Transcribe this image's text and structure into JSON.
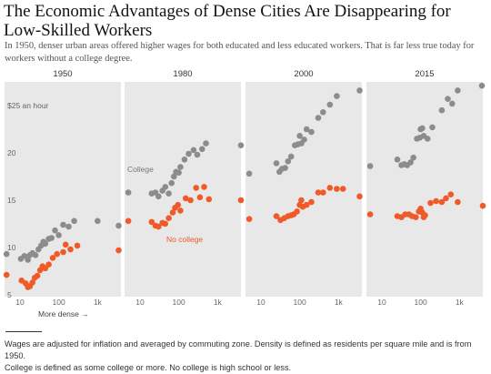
{
  "title": "The Economic Advantages of Dense Cities Are Disappearing for Low-Skilled Workers",
  "subtitle": "In 1950, denser urban areas offered higher wages for both educated and less educated workers. That is far less true today for workers without a college degree.",
  "notes": [
    "Wages are adjusted for inflation and averaged by commuting zone. Density is defined as residents per square mile and is from 1950.",
    "College is defined as some college or more. No college is high school or less."
  ],
  "colors": {
    "college": "#8c8c8c",
    "no_college": "#f05a28",
    "panel_bg": "#e8e8e8"
  },
  "chart_data": {
    "type": "scatter",
    "x_scale": "log",
    "xlim": [
      4,
      4000
    ],
    "ylim": [
      4.8,
      27.5
    ],
    "x_ticks": [
      {
        "v": 10,
        "label": "10"
      },
      {
        "v": 100,
        "label": "100"
      },
      {
        "v": 1000,
        "label": "1k"
      }
    ],
    "y_ticks": [
      {
        "v": 25,
        "label": "$25 an hour"
      },
      {
        "v": 20,
        "label": "20"
      },
      {
        "v": 15,
        "label": "15"
      },
      {
        "v": 10,
        "label": "10"
      },
      {
        "v": 5,
        "label": "5"
      }
    ],
    "x_note": "More dense →",
    "series_labels": {
      "college": "College",
      "no_college": "No college"
    },
    "panels": [
      {
        "year": "1950",
        "college": [
          [
            4.5,
            9.3
          ],
          [
            10.5,
            8.8
          ],
          [
            13,
            9.1
          ],
          [
            16,
            8.7
          ],
          [
            18,
            9.2
          ],
          [
            21,
            9.4
          ],
          [
            25,
            9.2
          ],
          [
            30,
            9.8
          ],
          [
            35,
            10.2
          ],
          [
            40,
            10.6
          ],
          [
            45,
            10.4
          ],
          [
            55,
            10.9
          ],
          [
            65,
            11
          ],
          [
            80,
            11.8
          ],
          [
            100,
            11.3
          ],
          [
            130,
            12.4
          ],
          [
            180,
            12.2
          ],
          [
            250,
            12.8
          ],
          [
            1000,
            12.8
          ],
          [
            3500,
            12.3
          ]
        ],
        "no_college": [
          [
            4.5,
            7.1
          ],
          [
            11,
            6.5
          ],
          [
            14,
            6.2
          ],
          [
            16,
            5.8
          ],
          [
            18,
            5.9
          ],
          [
            21,
            6.3
          ],
          [
            24,
            6.8
          ],
          [
            28,
            7
          ],
          [
            33,
            7.6
          ],
          [
            38,
            8
          ],
          [
            45,
            7.8
          ],
          [
            55,
            8.2
          ],
          [
            70,
            8.9
          ],
          [
            90,
            9.3
          ],
          [
            130,
            9.5
          ],
          [
            150,
            10.3
          ],
          [
            200,
            9.8
          ],
          [
            300,
            10.2
          ],
          [
            3500,
            9.7
          ]
        ]
      },
      {
        "year": "1980",
        "college": [
          [
            5,
            15.8
          ],
          [
            20,
            15.7
          ],
          [
            25,
            15.8
          ],
          [
            30,
            15.4
          ],
          [
            38,
            16
          ],
          [
            45,
            16.4
          ],
          [
            55,
            15.7
          ],
          [
            65,
            16.8
          ],
          [
            75,
            17.5
          ],
          [
            85,
            18
          ],
          [
            100,
            17.9
          ],
          [
            110,
            18.5
          ],
          [
            140,
            19.3
          ],
          [
            180,
            19.9
          ],
          [
            240,
            20.3
          ],
          [
            300,
            19.8
          ],
          [
            400,
            20.4
          ],
          [
            500,
            21
          ],
          [
            4000,
            20.8
          ]
        ],
        "no_college": [
          [
            5,
            12.8
          ],
          [
            20,
            12.7
          ],
          [
            25,
            12.3
          ],
          [
            30,
            12.2
          ],
          [
            38,
            12.6
          ],
          [
            45,
            12.5
          ],
          [
            55,
            13.1
          ],
          [
            70,
            13.7
          ],
          [
            80,
            14.2
          ],
          [
            95,
            14.5
          ],
          [
            110,
            13.9
          ],
          [
            150,
            15.2
          ],
          [
            200,
            15
          ],
          [
            280,
            16.3
          ],
          [
            350,
            15.3
          ],
          [
            450,
            16.4
          ],
          [
            600,
            15.1
          ],
          [
            4000,
            15
          ]
        ]
      },
      {
        "year": "2000",
        "college": [
          [
            5,
            17.8
          ],
          [
            25,
            18.9
          ],
          [
            30,
            18
          ],
          [
            35,
            18.3
          ],
          [
            42,
            18.4
          ],
          [
            50,
            19.1
          ],
          [
            60,
            19.6
          ],
          [
            75,
            20.8
          ],
          [
            90,
            20.9
          ],
          [
            100,
            21.8
          ],
          [
            110,
            21
          ],
          [
            130,
            21.4
          ],
          [
            150,
            22.5
          ],
          [
            200,
            22.2
          ],
          [
            300,
            23.7
          ],
          [
            400,
            24.3
          ],
          [
            600,
            25.1
          ],
          [
            900,
            26
          ],
          [
            3500,
            26.6
          ]
        ],
        "no_college": [
          [
            5,
            13
          ],
          [
            25,
            13.3
          ],
          [
            32,
            12.9
          ],
          [
            40,
            13.1
          ],
          [
            50,
            13.3
          ],
          [
            60,
            13.4
          ],
          [
            70,
            13.5
          ],
          [
            85,
            13.8
          ],
          [
            100,
            14.5
          ],
          [
            110,
            15
          ],
          [
            120,
            14.3
          ],
          [
            150,
            14.5
          ],
          [
            200,
            14.8
          ],
          [
            300,
            15.8
          ],
          [
            400,
            15.8
          ],
          [
            600,
            16.3
          ],
          [
            900,
            16.2
          ],
          [
            1300,
            16.2
          ],
          [
            3500,
            15.4
          ]
        ]
      },
      {
        "year": "2015",
        "college": [
          [
            5,
            18.6
          ],
          [
            25,
            19.3
          ],
          [
            32,
            18.7
          ],
          [
            38,
            18.8
          ],
          [
            45,
            18.7
          ],
          [
            55,
            19
          ],
          [
            65,
            19.5
          ],
          [
            80,
            21.5
          ],
          [
            95,
            21.6
          ],
          [
            100,
            22.5
          ],
          [
            110,
            22.6
          ],
          [
            120,
            21.8
          ],
          [
            150,
            21.5
          ],
          [
            200,
            22.7
          ],
          [
            350,
            24.5
          ],
          [
            500,
            25.7
          ],
          [
            650,
            25.2
          ],
          [
            900,
            26.6
          ],
          [
            3800,
            27.1
          ]
        ],
        "no_college": [
          [
            5,
            13.5
          ],
          [
            25,
            13.3
          ],
          [
            32,
            13.2
          ],
          [
            40,
            13.5
          ],
          [
            50,
            13.5
          ],
          [
            60,
            13.3
          ],
          [
            75,
            13.2
          ],
          [
            90,
            13.8
          ],
          [
            100,
            14.1
          ],
          [
            110,
            13.7
          ],
          [
            120,
            13.2
          ],
          [
            130,
            13.4
          ],
          [
            180,
            14.7
          ],
          [
            250,
            14.9
          ],
          [
            350,
            14.8
          ],
          [
            450,
            15.2
          ],
          [
            600,
            15.6
          ],
          [
            900,
            14.8
          ],
          [
            4000,
            14.4
          ]
        ]
      }
    ]
  }
}
